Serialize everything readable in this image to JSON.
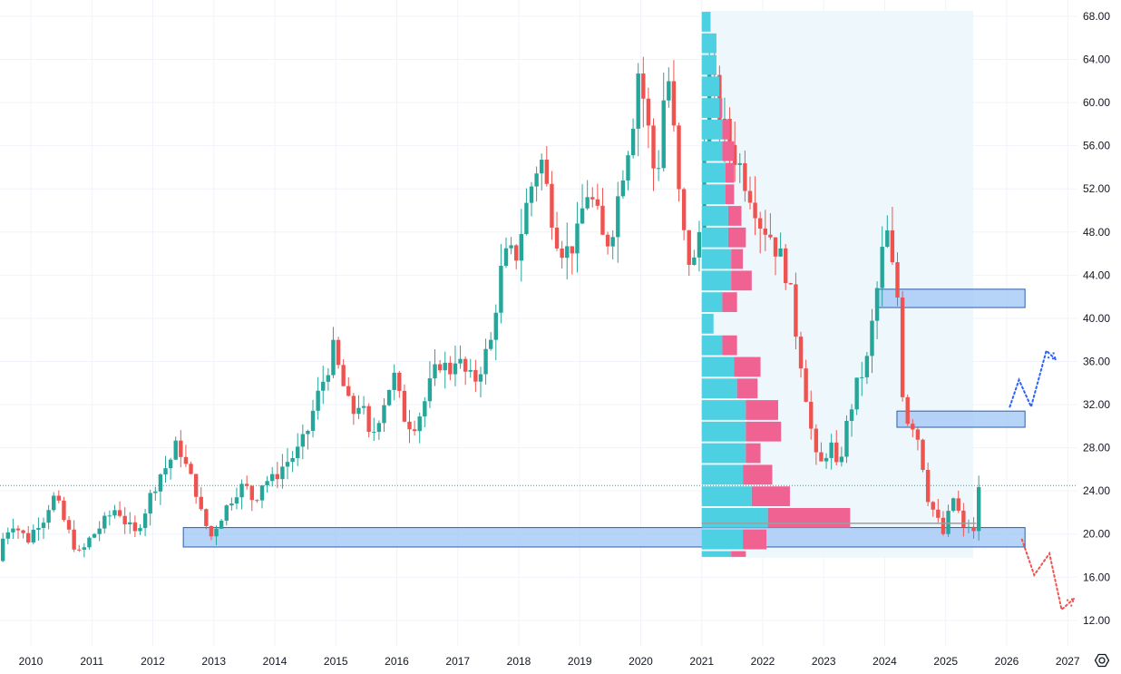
{
  "chart_data": {
    "type": "candlestick",
    "title": "",
    "xlabel": "",
    "ylabel": "",
    "ylim": [
      11,
      69
    ],
    "xlim": [
      2009.5,
      2027.3
    ],
    "grid": true,
    "legend": "none",
    "colors": {
      "up": "#26a69a",
      "down": "#ef5350",
      "zone_fill": "#a9cbf7",
      "zone_stroke": "#2e5ea8",
      "profile_up": "#4dd0e1",
      "profile_down": "#f06292",
      "profile_range_bg": "#eef7fc",
      "projection_up": "#2962ff",
      "projection_down": "#ef5350",
      "price_line": "#26a69a"
    },
    "y_ticks": [
      {
        "value": 68,
        "label": "68.00"
      },
      {
        "value": 64,
        "label": "64.00"
      },
      {
        "value": 60,
        "label": "60.00"
      },
      {
        "value": 56,
        "label": "56.00"
      },
      {
        "value": 52,
        "label": "52.00"
      },
      {
        "value": 48,
        "label": "48.00"
      },
      {
        "value": 44,
        "label": "44.00"
      },
      {
        "value": 40,
        "label": "40.00"
      },
      {
        "value": 36,
        "label": "36.00"
      },
      {
        "value": 32,
        "label": "32.00"
      },
      {
        "value": 28,
        "label": "28.00"
      },
      {
        "value": 24,
        "label": "24.00"
      },
      {
        "value": 20,
        "label": "20.00"
      },
      {
        "value": 16,
        "label": "16.00"
      },
      {
        "value": 12,
        "label": "12.00"
      }
    ],
    "x_ticks": [
      {
        "value": 2010,
        "label": "2010"
      },
      {
        "value": 2011,
        "label": "2011"
      },
      {
        "value": 2012,
        "label": "2012"
      },
      {
        "value": 2013,
        "label": "2013"
      },
      {
        "value": 2014,
        "label": "2014"
      },
      {
        "value": 2015,
        "label": "2015"
      },
      {
        "value": 2016,
        "label": "2016"
      },
      {
        "value": 2017,
        "label": "2017"
      },
      {
        "value": 2018,
        "label": "2018"
      },
      {
        "value": 2019,
        "label": "2019"
      },
      {
        "value": 2020,
        "label": "2020"
      },
      {
        "value": 2021,
        "label": "2021"
      },
      {
        "value": 2022,
        "label": "2022"
      },
      {
        "value": 2023,
        "label": "2023"
      },
      {
        "value": 2024,
        "label": "2024"
      },
      {
        "value": 2025,
        "label": "2025"
      },
      {
        "value": 2026,
        "label": "2026"
      },
      {
        "value": 2027,
        "label": "2027"
      }
    ],
    "last_price": 24.5,
    "price_path": [
      [
        2009.5,
        17.5
      ],
      [
        2009.6,
        20
      ],
      [
        2009.75,
        21
      ],
      [
        2009.9,
        20
      ],
      [
        2010,
        19.5
      ],
      [
        2010.15,
        21
      ],
      [
        2010.25,
        21.5
      ],
      [
        2010.4,
        23.5
      ],
      [
        2010.5,
        22.5
      ],
      [
        2010.6,
        21
      ],
      [
        2010.75,
        19
      ],
      [
        2010.85,
        18
      ],
      [
        2011,
        19.5
      ],
      [
        2011.15,
        20.5
      ],
      [
        2011.3,
        21.5
      ],
      [
        2011.45,
        22.5
      ],
      [
        2011.6,
        21
      ],
      [
        2011.75,
        20
      ],
      [
        2011.9,
        22
      ],
      [
        2012,
        23.5
      ],
      [
        2012.15,
        25.5
      ],
      [
        2012.3,
        26.5
      ],
      [
        2012.45,
        28.5
      ],
      [
        2012.6,
        26
      ],
      [
        2012.75,
        24
      ],
      [
        2012.85,
        21.5
      ],
      [
        2013,
        19.8
      ],
      [
        2013.1,
        21
      ],
      [
        2013.25,
        22.5
      ],
      [
        2013.4,
        24
      ],
      [
        2013.55,
        24.5
      ],
      [
        2013.7,
        23
      ],
      [
        2013.85,
        25
      ],
      [
        2014,
        25
      ],
      [
        2014.2,
        26.5
      ],
      [
        2014.4,
        27.5
      ],
      [
        2014.55,
        29
      ],
      [
        2014.7,
        32
      ],
      [
        2014.85,
        34.5
      ],
      [
        2015,
        37
      ],
      [
        2015.15,
        34
      ],
      [
        2015.3,
        31
      ],
      [
        2015.45,
        32.5
      ],
      [
        2015.6,
        28.5
      ],
      [
        2015.75,
        31
      ],
      [
        2015.9,
        33.5
      ],
      [
        2016,
        34.5
      ],
      [
        2016.15,
        31
      ],
      [
        2016.3,
        30
      ],
      [
        2016.45,
        31.5
      ],
      [
        2016.6,
        34
      ],
      [
        2016.75,
        36
      ],
      [
        2016.9,
        35
      ],
      [
        2017,
        36.5
      ],
      [
        2017.15,
        35
      ],
      [
        2017.3,
        34
      ],
      [
        2017.45,
        36
      ],
      [
        2017.6,
        38
      ],
      [
        2017.7,
        43
      ],
      [
        2017.8,
        45.5
      ],
      [
        2018,
        46
      ],
      [
        2018.15,
        50
      ],
      [
        2018.3,
        53.5
      ],
      [
        2018.4,
        55
      ],
      [
        2018.5,
        52
      ],
      [
        2018.65,
        48
      ],
      [
        2018.8,
        46
      ],
      [
        2019,
        47.5
      ],
      [
        2019.15,
        52
      ],
      [
        2019.3,
        50
      ],
      [
        2019.45,
        46.5
      ],
      [
        2019.6,
        49
      ],
      [
        2019.75,
        54
      ],
      [
        2019.9,
        58
      ],
      [
        2020,
        63
      ],
      [
        2020.1,
        60
      ],
      [
        2020.2,
        56
      ],
      [
        2020.3,
        52
      ],
      [
        2020.4,
        60
      ],
      [
        2020.5,
        62
      ],
      [
        2020.6,
        56
      ],
      [
        2020.7,
        49
      ],
      [
        2020.8,
        46
      ],
      [
        2020.9,
        44.5
      ],
      [
        2021,
        48
      ],
      [
        2021.05,
        55
      ],
      [
        2021.15,
        61
      ],
      [
        2021.2,
        64
      ],
      [
        2021.3,
        58
      ],
      [
        2021.45,
        57
      ],
      [
        2021.6,
        55
      ],
      [
        2021.75,
        53
      ],
      [
        2021.9,
        51
      ],
      [
        2022,
        49
      ],
      [
        2022.15,
        48
      ],
      [
        2022.3,
        46
      ],
      [
        2022.45,
        44
      ],
      [
        2022.55,
        40
      ],
      [
        2022.7,
        35
      ],
      [
        2022.8,
        31
      ],
      [
        2022.9,
        27
      ],
      [
        2023,
        26.5
      ],
      [
        2023.15,
        28.5
      ],
      [
        2023.25,
        26
      ],
      [
        2023.35,
        28
      ],
      [
        2023.45,
        31
      ],
      [
        2023.6,
        34
      ],
      [
        2023.75,
        36
      ],
      [
        2023.85,
        40
      ],
      [
        2024,
        46
      ],
      [
        2024.05,
        49
      ],
      [
        2024.15,
        45
      ],
      [
        2024.25,
        42
      ],
      [
        2024.3,
        38
      ],
      [
        2024.35,
        31
      ],
      [
        2024.45,
        30.5
      ],
      [
        2024.55,
        30
      ],
      [
        2024.65,
        27
      ],
      [
        2024.75,
        23.5
      ],
      [
        2024.85,
        22
      ],
      [
        2025,
        20
      ],
      [
        2025.1,
        22
      ],
      [
        2025.2,
        24
      ],
      [
        2025.3,
        20
      ],
      [
        2025.4,
        21
      ],
      [
        2025.5,
        20
      ],
      [
        2025.55,
        24.5
      ]
    ],
    "zones": [
      {
        "x1": 2012.5,
        "x2": 2026.3,
        "y1": 18.8,
        "y2": 20.6
      },
      {
        "x1": 2023.85,
        "x2": 2026.3,
        "y1": 41.0,
        "y2": 42.7
      },
      {
        "x1": 2024.2,
        "x2": 2026.3,
        "y1": 29.9,
        "y2": 31.4
      }
    ],
    "volume_profile": {
      "x_start": 2021.0,
      "x_end": 2025.45,
      "y_low": 17.8,
      "y_high": 68.5,
      "rows": [
        {
          "y1": 66.5,
          "y2": 68.5,
          "up": 0.06,
          "down": 0.0
        },
        {
          "y1": 64.5,
          "y2": 66.5,
          "up": 0.1,
          "down": 0.0
        },
        {
          "y1": 62.5,
          "y2": 64.5,
          "up": 0.1,
          "down": 0.0
        },
        {
          "y1": 60.5,
          "y2": 62.5,
          "up": 0.12,
          "down": 0.0
        },
        {
          "y1": 58.5,
          "y2": 60.5,
          "up": 0.12,
          "down": 0.02
        },
        {
          "y1": 56.5,
          "y2": 58.5,
          "up": 0.14,
          "down": 0.05
        },
        {
          "y1": 54.5,
          "y2": 56.5,
          "up": 0.14,
          "down": 0.08
        },
        {
          "y1": 52.5,
          "y2": 54.5,
          "up": 0.16,
          "down": 0.06
        },
        {
          "y1": 50.5,
          "y2": 52.5,
          "up": 0.16,
          "down": 0.06
        },
        {
          "y1": 48.5,
          "y2": 50.5,
          "up": 0.18,
          "down": 0.09
        },
        {
          "y1": 46.5,
          "y2": 48.5,
          "up": 0.18,
          "down": 0.12
        },
        {
          "y1": 44.5,
          "y2": 46.5,
          "up": 0.2,
          "down": 0.08
        },
        {
          "y1": 42.5,
          "y2": 44.5,
          "up": 0.2,
          "down": 0.14
        },
        {
          "y1": 40.5,
          "y2": 42.5,
          "up": 0.14,
          "down": 0.1
        },
        {
          "y1": 38.5,
          "y2": 40.5,
          "up": 0.08,
          "down": 0.0
        },
        {
          "y1": 36.5,
          "y2": 38.5,
          "up": 0.14,
          "down": 0.1
        },
        {
          "y1": 34.5,
          "y2": 36.5,
          "up": 0.22,
          "down": 0.18
        },
        {
          "y1": 32.5,
          "y2": 34.5,
          "up": 0.24,
          "down": 0.14
        },
        {
          "y1": 30.5,
          "y2": 32.5,
          "up": 0.3,
          "down": 0.22
        },
        {
          "y1": 28.5,
          "y2": 30.5,
          "up": 0.3,
          "down": 0.24
        },
        {
          "y1": 26.5,
          "y2": 28.5,
          "up": 0.3,
          "down": 0.1
        },
        {
          "y1": 24.5,
          "y2": 26.5,
          "up": 0.28,
          "down": 0.2
        },
        {
          "y1": 22.5,
          "y2": 24.5,
          "up": 0.34,
          "down": 0.26
        },
        {
          "y1": 20.5,
          "y2": 22.5,
          "up": 0.45,
          "down": 0.56
        },
        {
          "y1": 18.5,
          "y2": 20.5,
          "up": 0.28,
          "down": 0.16
        },
        {
          "y1": 17.8,
          "y2": 18.5,
          "up": 0.2,
          "down": 0.1
        }
      ],
      "poc_price": 21.0,
      "poc_x_end": 2025.5
    },
    "projections": [
      {
        "direction": "up",
        "points": [
          [
            2026.05,
            31.8
          ],
          [
            2026.2,
            34.3
          ],
          [
            2026.4,
            31.8
          ],
          [
            2026.65,
            37.0
          ],
          [
            2026.8,
            36.2
          ]
        ]
      },
      {
        "direction": "down",
        "points": [
          [
            2026.25,
            19.5
          ],
          [
            2026.45,
            16.2
          ],
          [
            2026.7,
            18.2
          ],
          [
            2026.9,
            13.0
          ],
          [
            2027.1,
            14.0
          ]
        ]
      }
    ]
  }
}
